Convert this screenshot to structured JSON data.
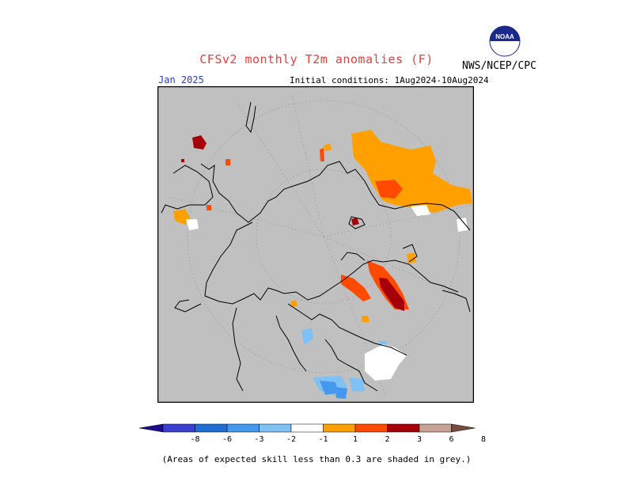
{
  "header": {
    "title": "CFSv2 monthly T2m anomalies (F)",
    "agency": "NWS/NCEP/CPC",
    "logo_text": "NOAA",
    "valid_month": "Jan 2025",
    "initial_conditions": "Initial conditions: 1Aug2024-10Aug2024"
  },
  "map": {
    "projection": "north polar stereographic",
    "land_skill_shade_color": "#c0c0c0",
    "coastline_color": "#000000",
    "graticule_color": "#9a9a9a"
  },
  "legend": {
    "tick_labels": [
      "-8",
      "-6",
      "-3",
      "-2",
      "-1",
      "1",
      "2",
      "3",
      "6",
      "8"
    ],
    "colors": [
      "#1c0d8e",
      "#3b3fcf",
      "#1f6ed3",
      "#4499ee",
      "#7fc0f5",
      "#ffffff",
      "#ffa000",
      "#ff4a00",
      "#a50009",
      "#c9a297",
      "#7a4a3e"
    ]
  },
  "footnote": "(Areas of expected skill less than 0.3 are shaded in grey.)"
}
